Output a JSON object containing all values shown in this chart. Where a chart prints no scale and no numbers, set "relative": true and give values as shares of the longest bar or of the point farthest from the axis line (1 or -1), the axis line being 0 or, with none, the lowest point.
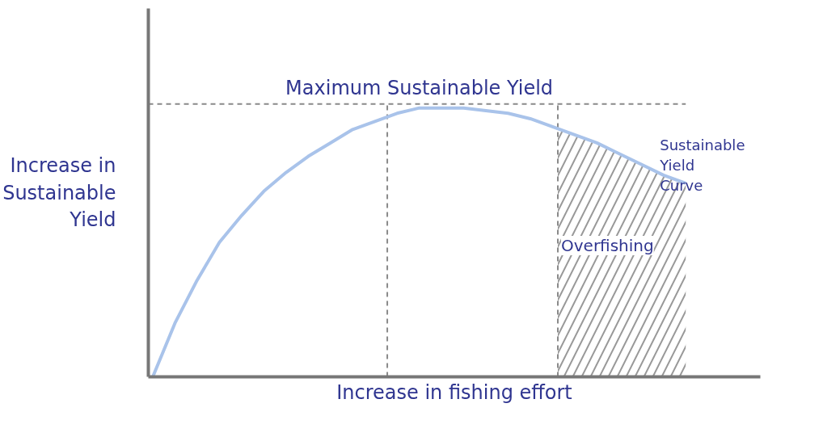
{
  "chart_data": {
    "type": "line",
    "relative": true,
    "line_style": "solid",
    "xlabel": "Increase in fishing effort",
    "ylabel": "Increase in Sustainable Yield",
    "categories": [
      null,
      null,
      null,
      null,
      null,
      null,
      null,
      null,
      null,
      null,
      null,
      null,
      null,
      null,
      null,
      null,
      null,
      null,
      null,
      null,
      null,
      null,
      null,
      null,
      null
    ],
    "series": [
      {
        "name": "Sustainable Yield Curve",
        "color": "#a9c3ea",
        "values": [
          0,
          0.2,
          0.36,
          0.5,
          0.6,
          0.69,
          0.76,
          0.82,
          0.87,
          0.92,
          0.95,
          0.98,
          1.0,
          1.0,
          1.0,
          0.99,
          0.98,
          0.96,
          0.93,
          0.9,
          0.87,
          0.83,
          0.79,
          0.75,
          0.72
        ]
      }
    ],
    "ref_lines": [
      {
        "axis": "y",
        "value": 1.015,
        "label": "Maximum Sustainable Yield",
        "color": "#8a8a8a",
        "line_style": "dashed"
      }
    ],
    "annotations": [
      "Overfishing"
    ]
  }
}
